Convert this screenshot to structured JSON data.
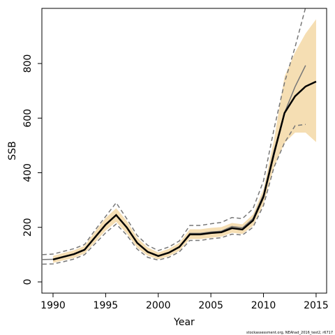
{
  "chart_data": {
    "type": "line",
    "xlabel": "Year",
    "ylabel": "SSB",
    "note": "stockassessment.org, NEAhad_2016_test2, r6717",
    "xlim": [
      1988.94,
      2016.0
    ],
    "ylim": [
      -41,
      1002
    ],
    "xticks": [
      1990,
      1995,
      2000,
      2005,
      2010,
      2015
    ],
    "yticks": [
      0,
      200,
      400,
      600,
      800
    ],
    "band": {
      "color": "#f5deb3",
      "x": [
        1990,
        1991,
        1992,
        1993,
        1994,
        1995,
        1996,
        1997,
        1998,
        1999,
        2000,
        2001,
        2002,
        2003,
        2004,
        2005,
        2006,
        2007,
        2008,
        2009,
        2010,
        2011,
        2012,
        2013,
        2014,
        2015
      ],
      "lower": [
        70,
        79,
        88,
        104,
        145,
        188,
        220,
        178,
        125,
        96,
        83,
        94,
        114,
        157,
        157,
        162,
        166,
        180,
        176,
        205,
        285,
        420,
        509,
        547,
        547,
        512
      ],
      "upper": [
        95,
        106,
        116,
        132,
        185,
        234,
        270,
        224,
        162,
        126,
        108,
        121,
        143,
        193,
        193,
        198,
        201,
        216,
        211,
        247,
        340,
        520,
        752,
        841,
        910,
        962
      ]
    },
    "series": [
      {
        "color": "#777777",
        "dash": false,
        "width": 1.5,
        "x": [
          1989,
          1990,
          1991,
          1992,
          1993,
          1994,
          1995,
          1996,
          1997,
          1998,
          1999,
          2000,
          2001,
          2002,
          2003,
          2004,
          2005,
          2006,
          2007,
          2008,
          2009,
          2010,
          2011,
          2012,
          2013,
          2014
        ],
        "values": [
          82,
          83,
          91,
          101,
          117,
          163,
          210,
          246,
          200,
          143,
          110,
          96,
          108,
          128,
          178,
          178,
          183,
          186,
          203,
          198,
          232,
          320,
          480,
          620,
          715,
          793
        ]
      },
      {
        "color": "#777777",
        "dash": true,
        "width": 1.5,
        "x": [
          1989,
          1990,
          1991,
          1992,
          1993,
          1994,
          1995,
          1996,
          1997,
          1998,
          1999,
          2000,
          2001,
          2002,
          2003,
          2004,
          2005,
          2006,
          2007,
          2008,
          2009,
          2010,
          2011,
          2012,
          2013,
          2014
        ],
        "values": [
          65,
          66,
          74,
          84,
          100,
          140,
          180,
          212,
          172,
          120,
          90,
          80,
          90,
          110,
          152,
          152,
          158,
          162,
          175,
          172,
          200,
          280,
          420,
          510,
          572,
          577
        ]
      },
      {
        "color": "#777777",
        "dash": true,
        "width": 1.5,
        "x": [
          1989,
          1990,
          1991,
          1992,
          1993,
          1994,
          1995,
          1996,
          1997,
          1998,
          1999,
          2000,
          2001,
          2002,
          2003,
          2004,
          2005,
          2006,
          2007,
          2008,
          2009,
          2010,
          2011,
          2012,
          2013,
          2014
        ],
        "values": [
          100,
          102,
          112,
          122,
          137,
          190,
          240,
          290,
          232,
          170,
          134,
          115,
          128,
          150,
          207,
          207,
          213,
          218,
          236,
          232,
          268,
          370,
          560,
          730,
          860,
          1005
        ]
      },
      {
        "color": "#000000",
        "dash": false,
        "width": 2.5,
        "x": [
          1990,
          1991,
          1992,
          1993,
          1994,
          1995,
          1996,
          1997,
          1998,
          1999,
          2000,
          2001,
          2002,
          2003,
          2004,
          2005,
          2006,
          2007,
          2008,
          2009,
          2010,
          2011,
          2012,
          2013,
          2014,
          2015
        ],
        "values": [
          82,
          92,
          102,
          118,
          164,
          210,
          245,
          200,
          143,
          110,
          95,
          107,
          128,
          174,
          174,
          179,
          182,
          197,
          192,
          225,
          312,
          470,
          619,
          680,
          716,
          734
        ]
      }
    ]
  }
}
